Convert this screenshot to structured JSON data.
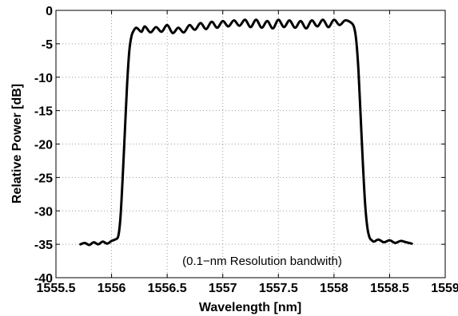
{
  "chart_data": {
    "type": "line",
    "xlabel": "Wavelength [nm]",
    "ylabel": "Relative Power [dB]",
    "xlim": [
      1555.5,
      1559
    ],
    "ylim": [
      -40,
      0
    ],
    "xticks": [
      "1555.5",
      "1556",
      "1556.5",
      "1557",
      "1557.5",
      "1558",
      "1558.5",
      "1559"
    ],
    "yticks": [
      "0",
      "-5",
      "-10",
      "-15",
      "-20",
      "-25",
      "-30",
      "-35",
      "-40"
    ],
    "grid": true,
    "annotation": "(0.1−nm Resolution bandwith)",
    "series": [
      {
        "color": "#000000",
        "x": [
          1555.72,
          1555.76,
          1555.8,
          1555.84,
          1555.88,
          1555.92,
          1555.96,
          1556.0,
          1556.03,
          1556.06,
          1556.08,
          1556.1,
          1556.12,
          1556.14,
          1556.16,
          1556.18,
          1556.2,
          1556.22,
          1556.24,
          1556.27,
          1556.3,
          1556.35,
          1556.4,
          1556.45,
          1556.5,
          1556.55,
          1556.6,
          1556.65,
          1556.7,
          1556.75,
          1556.8,
          1556.85,
          1556.9,
          1556.95,
          1557.0,
          1557.05,
          1557.1,
          1557.15,
          1557.2,
          1557.25,
          1557.3,
          1557.35,
          1557.4,
          1557.45,
          1557.5,
          1557.55,
          1557.6,
          1557.65,
          1557.7,
          1557.75,
          1557.8,
          1557.85,
          1557.9,
          1557.95,
          1558.0,
          1558.05,
          1558.1,
          1558.15,
          1558.18,
          1558.2,
          1558.22,
          1558.24,
          1558.26,
          1558.28,
          1558.3,
          1558.32,
          1558.34,
          1558.36,
          1558.4,
          1558.45,
          1558.5,
          1558.55,
          1558.6,
          1558.65,
          1558.7
        ],
        "y": [
          -35.0,
          -34.8,
          -35.1,
          -34.7,
          -35.0,
          -34.6,
          -34.9,
          -34.5,
          -34.3,
          -33.8,
          -31.0,
          -25.0,
          -18.0,
          -11.0,
          -6.0,
          -3.8,
          -3.0,
          -2.6,
          -2.8,
          -3.2,
          -2.4,
          -3.3,
          -2.5,
          -3.2,
          -2.2,
          -3.4,
          -2.6,
          -3.3,
          -2.2,
          -2.9,
          -1.9,
          -2.8,
          -1.7,
          -2.6,
          -1.6,
          -2.4,
          -1.5,
          -2.3,
          -1.4,
          -2.5,
          -1.4,
          -2.6,
          -1.6,
          -2.7,
          -1.4,
          -2.5,
          -1.5,
          -2.6,
          -1.6,
          -2.7,
          -1.5,
          -2.4,
          -1.4,
          -2.5,
          -1.4,
          -2.2,
          -1.5,
          -1.8,
          -2.5,
          -4.5,
          -9.0,
          -16.0,
          -23.0,
          -29.0,
          -32.5,
          -34.0,
          -34.4,
          -34.6,
          -34.3,
          -34.7,
          -34.4,
          -34.8,
          -34.5,
          -34.7,
          -34.9
        ]
      }
    ]
  }
}
